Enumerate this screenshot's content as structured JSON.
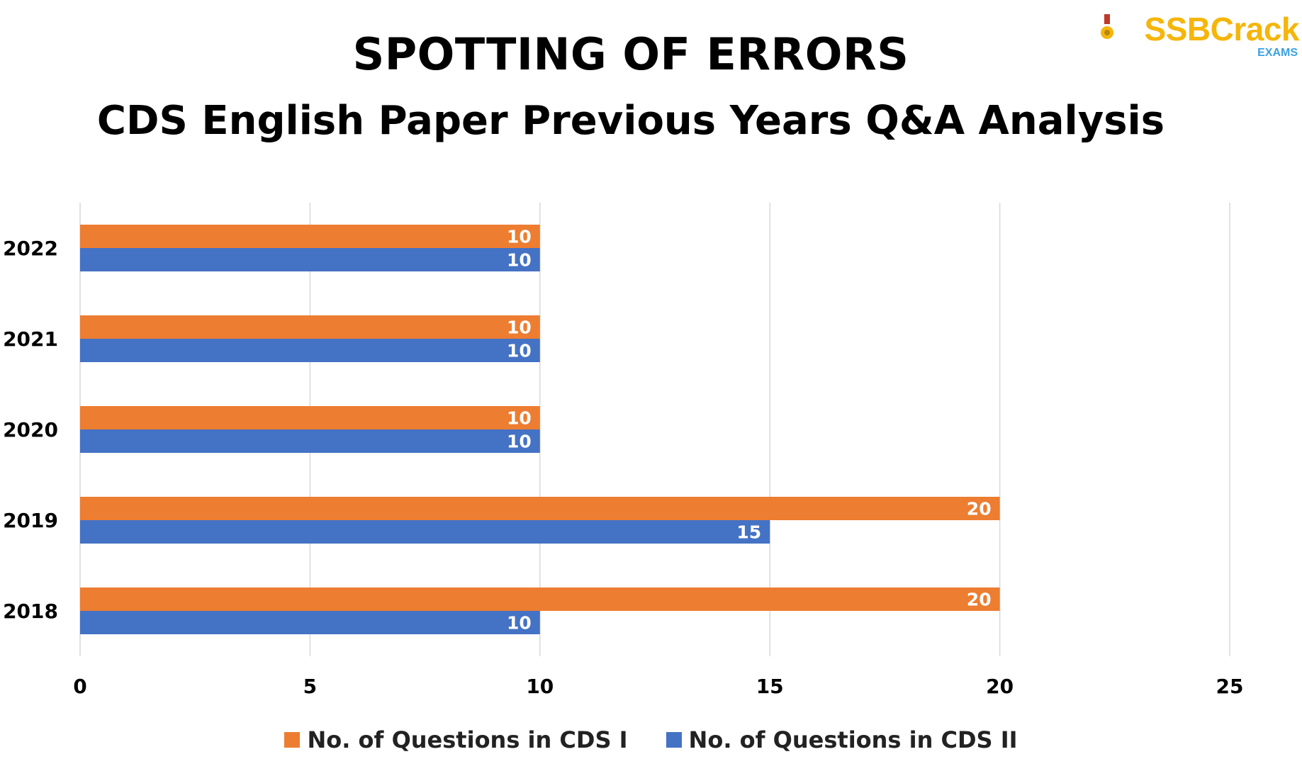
{
  "header": {
    "title": "SPOTTING OF ERRORS",
    "subtitle": "CDS English Paper Previous Years Q&A Analysis"
  },
  "logo": {
    "brand": "SSBCrack",
    "sub": "EXAMS",
    "icon": "medal-icon",
    "color": "#f5b50a",
    "sub_color": "#3aa0e0"
  },
  "chart_data": {
    "type": "bar",
    "orientation": "horizontal",
    "categories": [
      "2022",
      "2021",
      "2020",
      "2019",
      "2018"
    ],
    "series": [
      {
        "name": "No. of Questions in CDS I",
        "color": "#ed7d31",
        "values": [
          10,
          10,
          10,
          20,
          20
        ]
      },
      {
        "name": "No. of Questions in CDS II",
        "color": "#4472c4",
        "values": [
          10,
          10,
          10,
          15,
          10
        ]
      }
    ],
    "xlim": [
      0,
      25
    ],
    "xticks": [
      0,
      5,
      10,
      15,
      20,
      25
    ],
    "grid": "vertical",
    "legend": "bottom-center",
    "data_labels": true
  }
}
